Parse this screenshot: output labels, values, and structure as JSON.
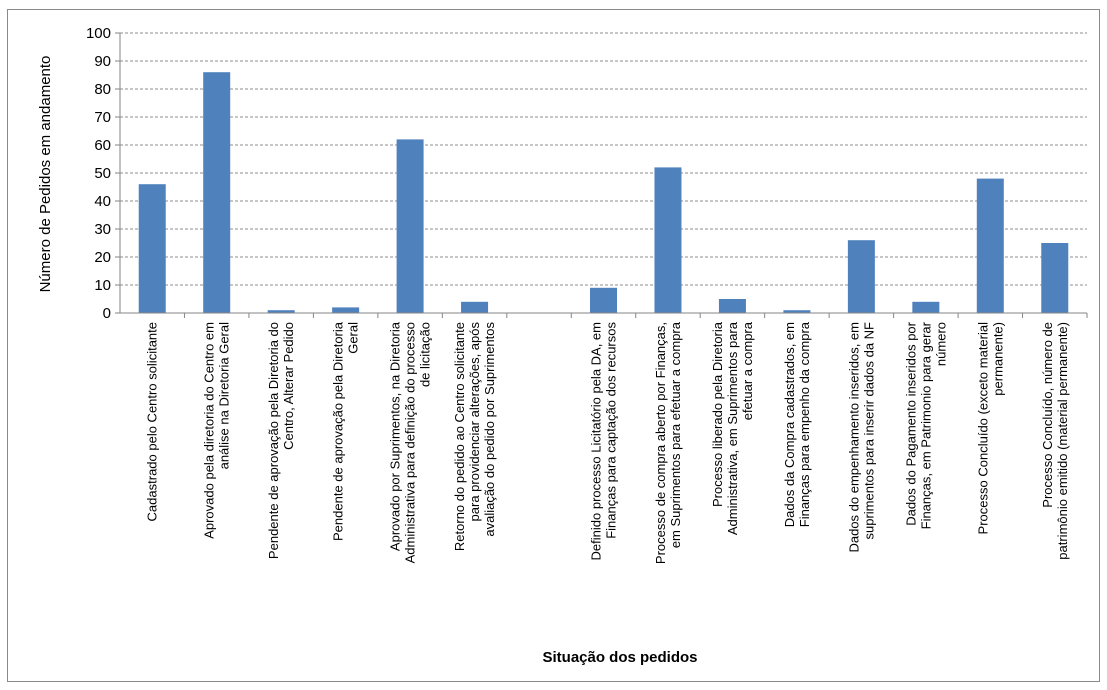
{
  "chart_data": {
    "type": "bar",
    "title": "",
    "xlabel": "Situação dos pedidos",
    "ylabel": "Número de Pedidos em andamento",
    "ylim": [
      0,
      100
    ],
    "yticks": [
      0,
      10,
      20,
      30,
      40,
      50,
      60,
      70,
      80,
      90,
      100
    ],
    "grid": true,
    "legend": "none",
    "bar_color": "#4f81bd",
    "categories": [
      [
        "Cadastrado pelo Centro solicitante"
      ],
      [
        "Aprovado pela diretoria do Centro em",
        "análise na Diretoria Geral"
      ],
      [
        "Pendente de aprovação pela Diretoria do",
        "Centro, Alterar Pedido"
      ],
      [
        "Pendente de aprovação pela Diretoria",
        "Geral"
      ],
      [
        "Aprovado por Suprimentos, na Diretoria",
        "Administrativa para definição do processo",
        "de licitação"
      ],
      [
        "Retorno do pedido ao Centro solicitante",
        "para providenciar alterações, após",
        "avaliação do pedido por Suprimentos"
      ],
      [
        ""
      ],
      [
        "Definido processo Licitatório pela DA, em",
        "Finanças para captação dos recursos"
      ],
      [
        "Processo de compra aberto por Finanças,",
        "em Suprimentos para efetuar a compra"
      ],
      [
        "Processo liberado pela Diretoria",
        "Administrativa, em Suprimentos para",
        "efetuar a compra"
      ],
      [
        "Dados da Compra cadastrados, em",
        "Finanças para empenho da compra"
      ],
      [
        "Dados do empenhamento inseridos, em",
        "suprimentos para inserir dados da NF"
      ],
      [
        "Dados do Pagamento inseridos por",
        "Finanças, em Patrimonio para gerar",
        "número"
      ],
      [
        "Processo Concluído (exceto material",
        "permanente)"
      ],
      [
        "Processo Concluído, número de",
        "patrimônio emitido (material permanente)"
      ]
    ],
    "values": [
      46,
      86,
      1,
      2,
      62,
      4,
      0,
      9,
      52,
      5,
      1,
      26,
      4,
      48,
      25
    ]
  }
}
